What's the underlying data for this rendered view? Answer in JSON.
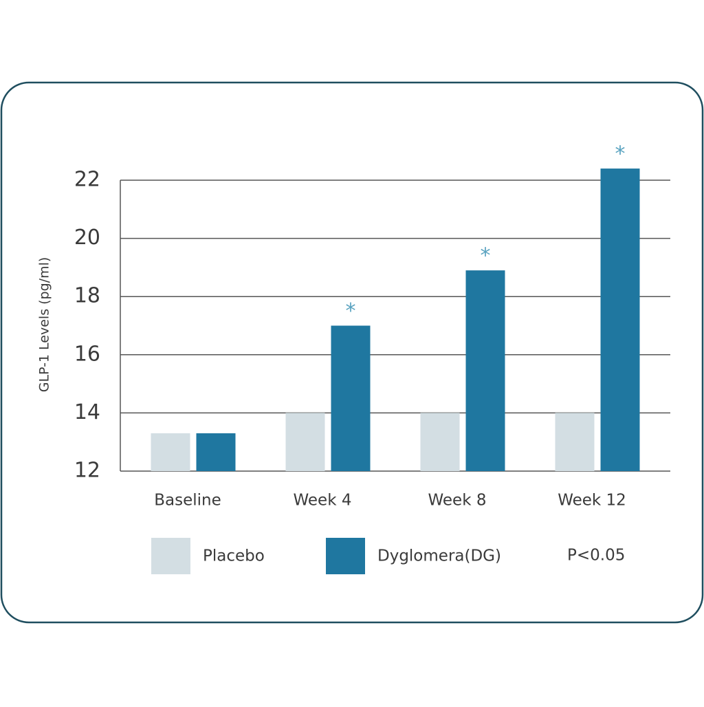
{
  "chart_data": {
    "type": "bar",
    "y_label": "GLP-1 Levels (pg/ml)",
    "categories": [
      "Baseline",
      "Week 4",
      "Week 8",
      "Week 12"
    ],
    "series": [
      {
        "name": "Placebo",
        "color": "#d3dee3",
        "values": [
          13.3,
          14,
          14,
          14
        ]
      },
      {
        "name": "Dyglomera(DG)",
        "color": "#1f77a0",
        "values": [
          13.3,
          17.0,
          18.9,
          22.4
        ],
        "markers": [
          null,
          "*",
          "*",
          "*"
        ],
        "marker_color": "#5aa3c0"
      }
    ],
    "legend_note": "P<0.05",
    "ylim": [
      12,
      22
    ],
    "yticks": [
      12,
      14,
      16,
      18,
      20,
      22
    ],
    "grid": true
  }
}
